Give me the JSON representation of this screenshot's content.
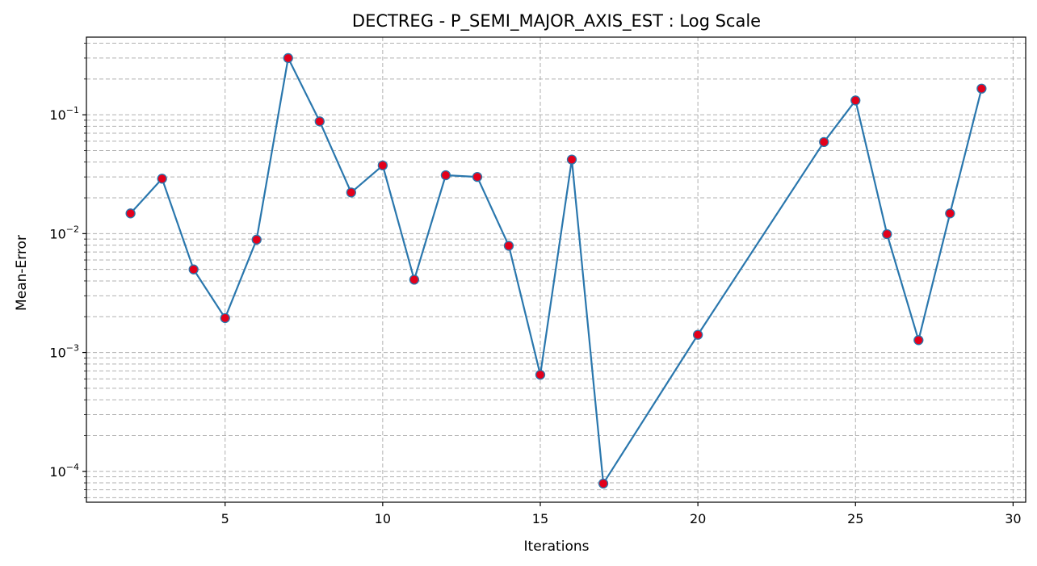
{
  "chart_data": {
    "type": "line",
    "title": "DECTREG - P_SEMI_MAJOR_AXIS_EST : Log Scale",
    "xlabel": "Iterations",
    "ylabel": "Mean-Error",
    "yscale": "log",
    "xlim": [
      0.6,
      30.4
    ],
    "ylim": [
      5.5e-05,
      0.45
    ],
    "xticks": [
      5,
      10,
      15,
      20,
      25,
      30
    ],
    "yticks": [
      {
        "value": 0.0001,
        "base": "10",
        "exp": "−4"
      },
      {
        "value": 0.001,
        "base": "10",
        "exp": "−3"
      },
      {
        "value": 0.01,
        "base": "10",
        "exp": "−2"
      },
      {
        "value": 0.1,
        "base": "10",
        "exp": "−1"
      }
    ],
    "grid": true,
    "line_color": "#2a77ad",
    "marker_color": "#e3001b",
    "series": [
      {
        "x": [
          2,
          3,
          4,
          5,
          6,
          7,
          8,
          9,
          10,
          11,
          12,
          13,
          14,
          15,
          16,
          17,
          20,
          24,
          25,
          26,
          27,
          28,
          29
        ],
        "values": [
          0.0148,
          0.029,
          0.005,
          0.00195,
          0.0089,
          0.3,
          0.088,
          0.0222,
          0.0375,
          0.0041,
          0.031,
          0.03,
          0.0079,
          0.00065,
          0.042,
          7.9e-05,
          0.00141,
          0.059,
          0.132,
          0.0099,
          0.00127,
          0.0148,
          0.166
        ]
      }
    ]
  }
}
